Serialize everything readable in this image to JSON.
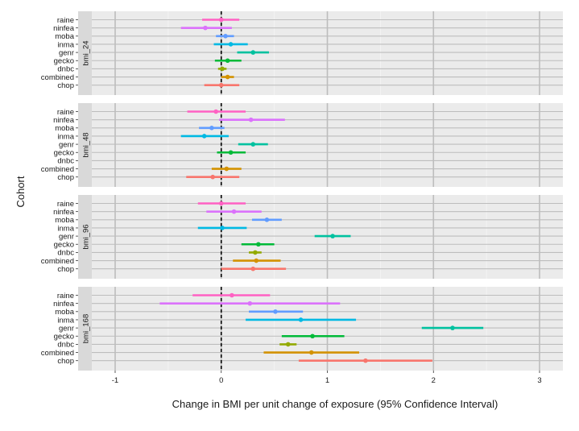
{
  "chart_data": {
    "type": "forest",
    "xlabel": "Change in BMI per unit change of exposure (95% Confidence Interval)",
    "ylabel": "Cohort",
    "xlim": [
      -1.22,
      3.22
    ],
    "xticks": [
      -1,
      0,
      1,
      2,
      3
    ],
    "reference_line_x": 0,
    "legend": "none",
    "cohorts": [
      "raine",
      "ninfea",
      "moba",
      "inma",
      "genr",
      "gecko",
      "dnbc",
      "combined",
      "chop"
    ],
    "cohort_colors": {
      "raine": "#FF61C3",
      "ninfea": "#DB72FB",
      "moba": "#619CFF",
      "inma": "#00B9E3",
      "genr": "#00C19F",
      "gecko": "#00BA38",
      "dnbc": "#93AA00",
      "combined": "#D39200",
      "chop": "#F8766D"
    },
    "panels": [
      {
        "label": "bmi_24",
        "rows": [
          {
            "cohort": "raine",
            "estimate": 0.0,
            "lower": -0.18,
            "upper": 0.17
          },
          {
            "cohort": "ninfea",
            "estimate": -0.15,
            "lower": -0.38,
            "upper": 0.1
          },
          {
            "cohort": "moba",
            "estimate": 0.04,
            "lower": -0.05,
            "upper": 0.12
          },
          {
            "cohort": "inma",
            "estimate": 0.09,
            "lower": -0.07,
            "upper": 0.25
          },
          {
            "cohort": "genr",
            "estimate": 0.3,
            "lower": 0.15,
            "upper": 0.45
          },
          {
            "cohort": "gecko",
            "estimate": 0.06,
            "lower": -0.06,
            "upper": 0.19
          },
          {
            "cohort": "dnbc",
            "estimate": 0.01,
            "lower": -0.03,
            "upper": 0.05
          },
          {
            "cohort": "combined",
            "estimate": 0.06,
            "lower": 0.0,
            "upper": 0.12
          },
          {
            "cohort": "chop",
            "estimate": 0.0,
            "lower": -0.16,
            "upper": 0.17
          }
        ]
      },
      {
        "label": "bmi_48",
        "rows": [
          {
            "cohort": "raine",
            "estimate": -0.05,
            "lower": -0.32,
            "upper": 0.23
          },
          {
            "cohort": "ninfea",
            "estimate": 0.28,
            "lower": -0.02,
            "upper": 0.6
          },
          {
            "cohort": "moba",
            "estimate": -0.09,
            "lower": -0.21,
            "upper": 0.03
          },
          {
            "cohort": "inma",
            "estimate": -0.16,
            "lower": -0.38,
            "upper": 0.07
          },
          {
            "cohort": "genr",
            "estimate": 0.3,
            "lower": 0.16,
            "upper": 0.44
          },
          {
            "cohort": "gecko",
            "estimate": 0.09,
            "lower": -0.04,
            "upper": 0.23
          },
          {
            "cohort": "dnbc",
            "estimate": null,
            "lower": null,
            "upper": null
          },
          {
            "cohort": "combined",
            "estimate": 0.05,
            "lower": -0.09,
            "upper": 0.19
          },
          {
            "cohort": "chop",
            "estimate": -0.08,
            "lower": -0.33,
            "upper": 0.17
          }
        ]
      },
      {
        "label": "bmi_96",
        "rows": [
          {
            "cohort": "raine",
            "estimate": 0.0,
            "lower": -0.22,
            "upper": 0.23
          },
          {
            "cohort": "ninfea",
            "estimate": 0.12,
            "lower": -0.14,
            "upper": 0.38
          },
          {
            "cohort": "moba",
            "estimate": 0.43,
            "lower": 0.29,
            "upper": 0.57
          },
          {
            "cohort": "inma",
            "estimate": 0.01,
            "lower": -0.22,
            "upper": 0.24
          },
          {
            "cohort": "genr",
            "estimate": 1.05,
            "lower": 0.88,
            "upper": 1.22
          },
          {
            "cohort": "gecko",
            "estimate": 0.35,
            "lower": 0.19,
            "upper": 0.5
          },
          {
            "cohort": "dnbc",
            "estimate": 0.32,
            "lower": 0.26,
            "upper": 0.38
          },
          {
            "cohort": "combined",
            "estimate": 0.33,
            "lower": 0.11,
            "upper": 0.56
          },
          {
            "cohort": "chop",
            "estimate": 0.3,
            "lower": 0.0,
            "upper": 0.61
          }
        ]
      },
      {
        "label": "bmi_168",
        "rows": [
          {
            "cohort": "raine",
            "estimate": 0.1,
            "lower": -0.27,
            "upper": 0.46
          },
          {
            "cohort": "ninfea",
            "estimate": 0.27,
            "lower": -0.58,
            "upper": 1.12
          },
          {
            "cohort": "moba",
            "estimate": 0.51,
            "lower": 0.26,
            "upper": 0.77
          },
          {
            "cohort": "inma",
            "estimate": 0.75,
            "lower": 0.23,
            "upper": 1.27
          },
          {
            "cohort": "genr",
            "estimate": 2.18,
            "lower": 1.89,
            "upper": 2.47
          },
          {
            "cohort": "gecko",
            "estimate": 0.86,
            "lower": 0.57,
            "upper": 1.16
          },
          {
            "cohort": "dnbc",
            "estimate": 0.63,
            "lower": 0.55,
            "upper": 0.71
          },
          {
            "cohort": "combined",
            "estimate": 0.85,
            "lower": 0.4,
            "upper": 1.3
          },
          {
            "cohort": "chop",
            "estimate": 1.36,
            "lower": 0.73,
            "upper": 1.99
          }
        ]
      }
    ]
  }
}
